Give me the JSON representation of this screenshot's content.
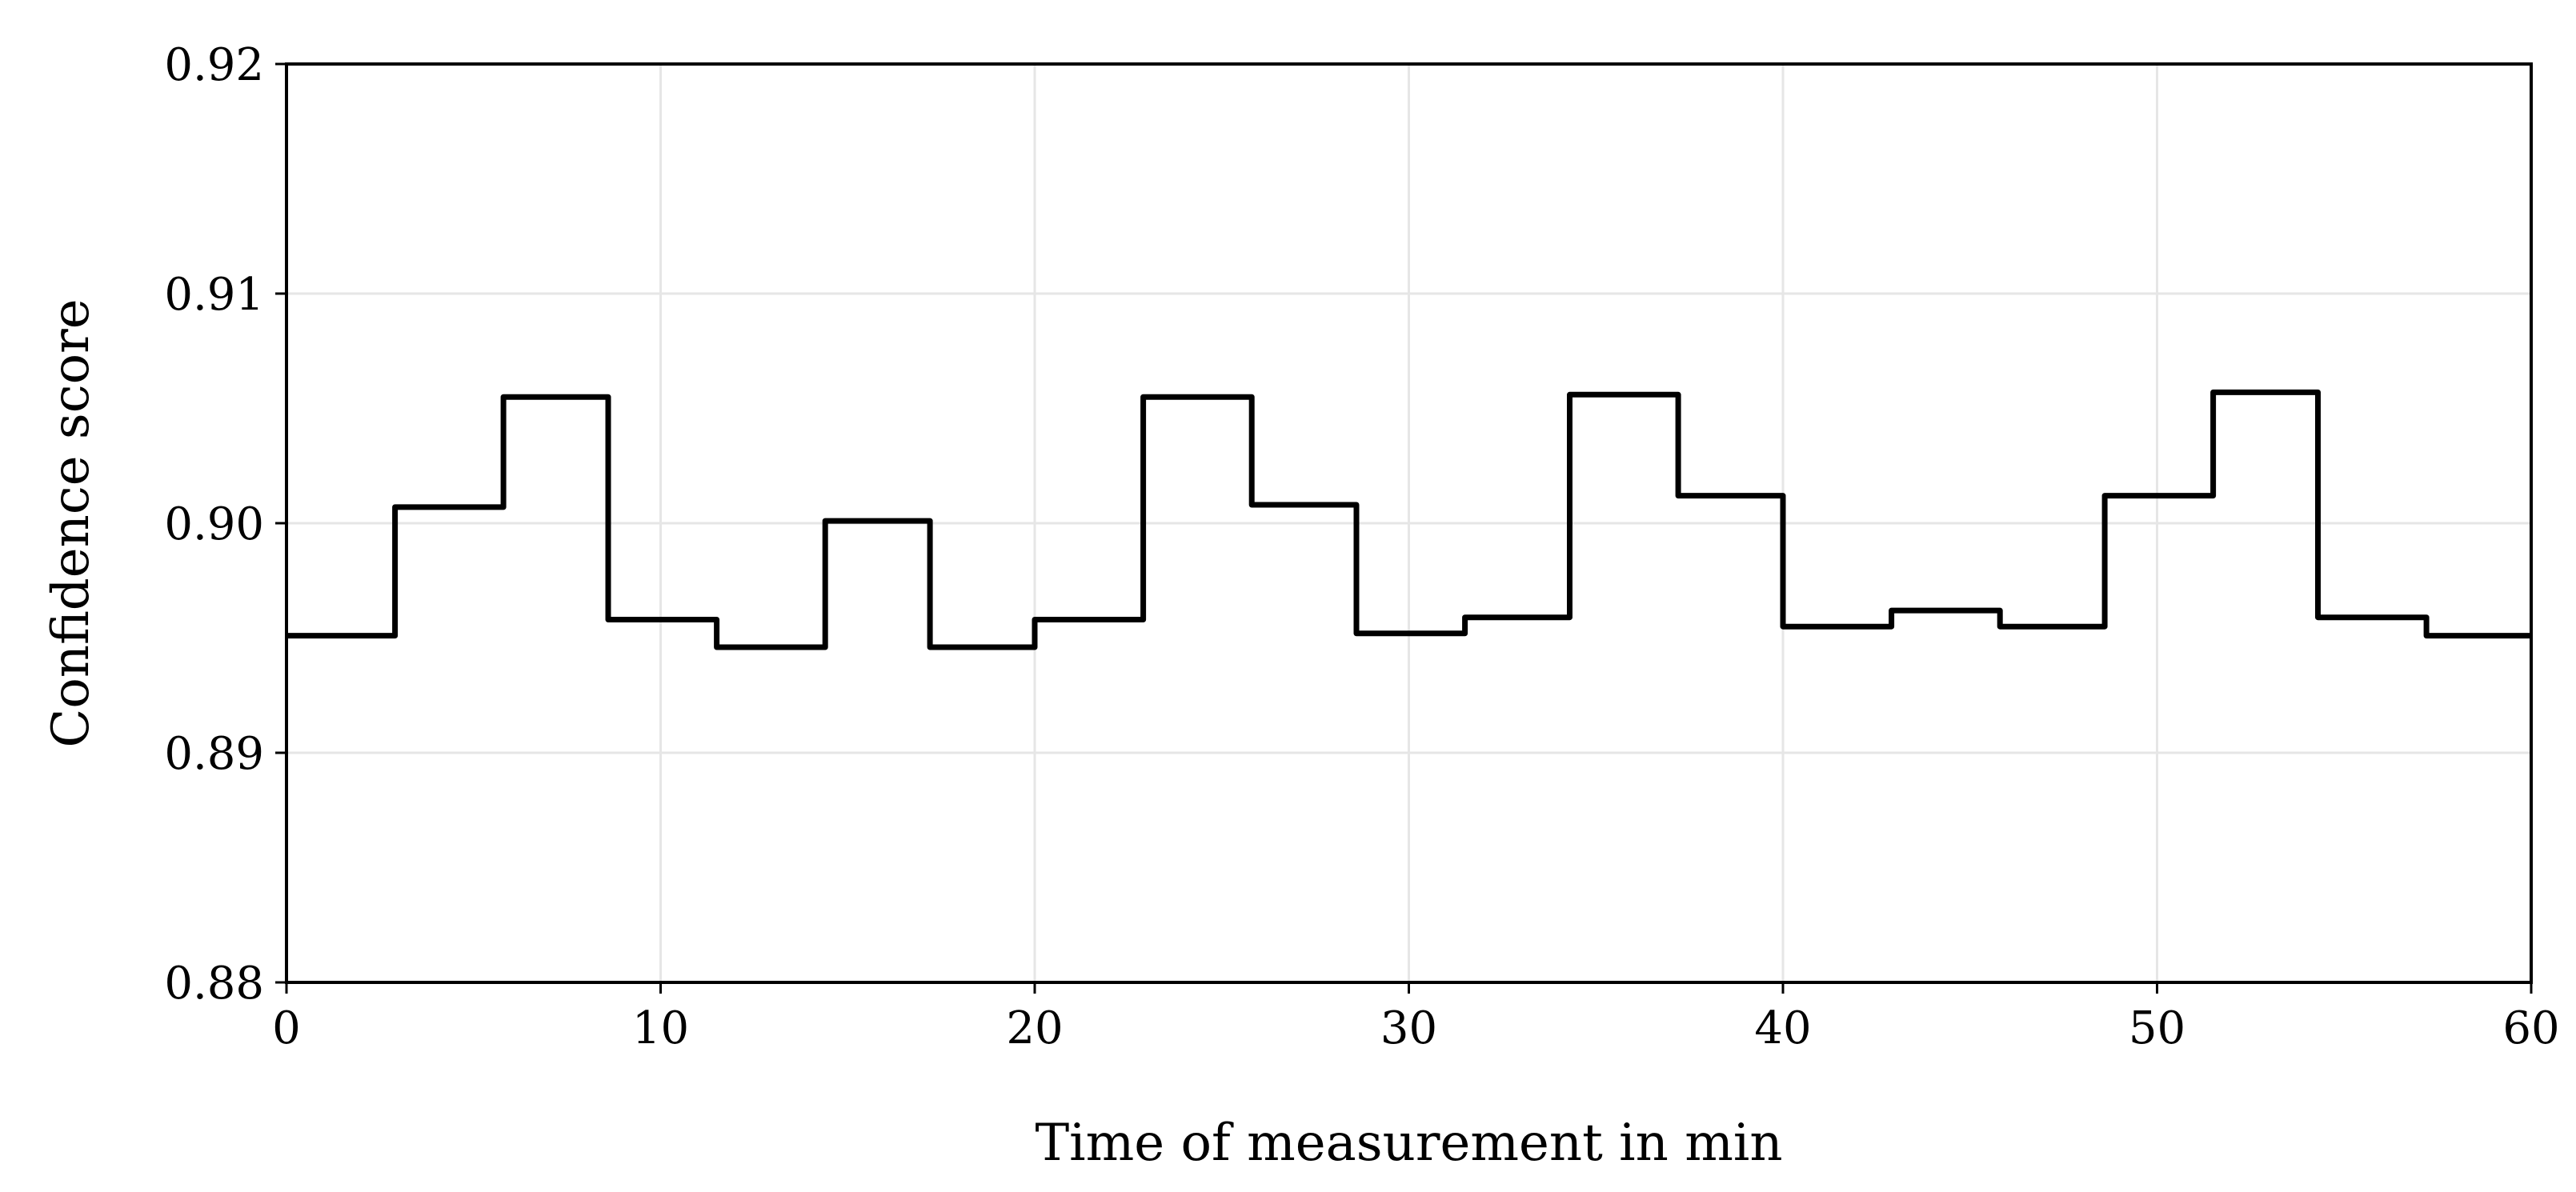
{
  "chart_data": {
    "type": "line",
    "title": "",
    "xlabel": "Time of measurement in min",
    "ylabel": "Confidence score",
    "xlim": [
      0,
      60
    ],
    "ylim": [
      0.88,
      0.92
    ],
    "xticks": [
      0,
      10,
      20,
      30,
      40,
      50,
      60
    ],
    "xtick_labels": [
      "0",
      "10",
      "20",
      "30",
      "40",
      "50",
      "60"
    ],
    "yticks": [
      0.88,
      0.89,
      0.9,
      0.91,
      0.92
    ],
    "ytick_labels": [
      "0.88",
      "0.89",
      "0.90",
      "0.91",
      "0.92"
    ],
    "grid": true,
    "legend": "none",
    "line_color": "#000000",
    "grid_color": "#e6e6e6",
    "series": [
      {
        "x": [
          0,
          2.9,
          2.9,
          5.8,
          5.8,
          8.6,
          8.6,
          11.5,
          11.5,
          14.4,
          14.4,
          17.2,
          17.2,
          20.0,
          20.0,
          22.9,
          22.9,
          25.8,
          25.8,
          28.6,
          28.6,
          31.5,
          31.5,
          34.3,
          34.3,
          37.2,
          37.2,
          40.0,
          40.0,
          42.9,
          42.9,
          45.8,
          45.8,
          48.6,
          48.6,
          51.5,
          51.5,
          54.3,
          54.3,
          57.2,
          57.2,
          60
        ],
        "y": [
          0.8951,
          0.8951,
          0.9007,
          0.9007,
          0.9055,
          0.9055,
          0.8958,
          0.8958,
          0.8946,
          0.8946,
          0.9001,
          0.9001,
          0.8946,
          0.8946,
          0.8958,
          0.8958,
          0.9055,
          0.9055,
          0.9008,
          0.9008,
          0.8952,
          0.8952,
          0.8959,
          0.8959,
          0.9056,
          0.9056,
          0.9012,
          0.9012,
          0.8955,
          0.8955,
          0.8962,
          0.8962,
          0.8955,
          0.8955,
          0.9012,
          0.9012,
          0.9057,
          0.9057,
          0.8959,
          0.8959,
          0.8951,
          0.8951
        ]
      }
    ]
  }
}
